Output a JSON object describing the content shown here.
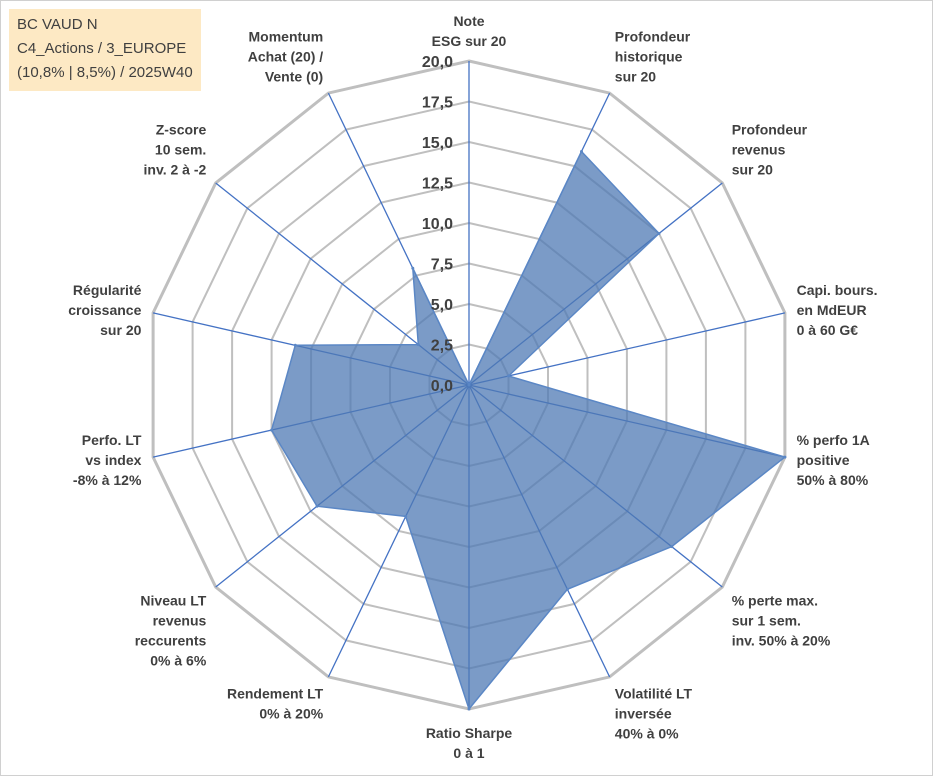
{
  "info": {
    "line1": "BC VAUD N",
    "line2": "C4_Actions / 3_EUROPE",
    "line3": "(10,8% | 8,5%) / 2025W40"
  },
  "colors": {
    "grid": "#bfbfbf",
    "spoke": "#4472c4",
    "fill": "#4f79b4",
    "stroke": "#5b87c5",
    "label": "#404040"
  },
  "chart_data": {
    "type": "radar",
    "title": "",
    "rmin": 0,
    "rmax": 20,
    "ticks": [
      "0,0",
      "2,5",
      "5,0",
      "7,5",
      "10,0",
      "12,5",
      "15,0",
      "17,5",
      "20,0"
    ],
    "tick_values": [
      0,
      2.5,
      5,
      7.5,
      10,
      12.5,
      15,
      17.5,
      20
    ],
    "axes": [
      {
        "label": [
          "Note",
          "ESG sur 20"
        ]
      },
      {
        "label": [
          "Profondeur",
          "historique",
          "sur 20"
        ]
      },
      {
        "label": [
          "Profondeur",
          "revenus",
          "sur 20"
        ]
      },
      {
        "label": [
          "Capi. bours.",
          "en MdEUR",
          "0 à 60 G€"
        ]
      },
      {
        "label": [
          "% perfo 1A",
          "positive",
          "50% à 80%"
        ]
      },
      {
        "label": [
          "% perte max.",
          "sur 1 sem.",
          "inv. 50% à 20%"
        ]
      },
      {
        "label": [
          "Volatilité LT",
          "inversée",
          "40% à 0%"
        ]
      },
      {
        "label": [
          "Ratio Sharpe",
          "0 à 1"
        ]
      },
      {
        "label": [
          "Rendement LT",
          "0% à 20%"
        ]
      },
      {
        "label": [
          "Niveau LT",
          "revenus",
          "reccurents",
          "0% à 6%"
        ]
      },
      {
        "label": [
          "Perfo. LT",
          "vs index",
          "-8% à 12%"
        ]
      },
      {
        "label": [
          "Régularité",
          "croissance",
          "sur 20"
        ]
      },
      {
        "label": [
          "Z-score",
          "10 sem.",
          "inv. 2 à -2"
        ]
      },
      {
        "label": [
          "Momentum",
          "Achat (20) /",
          "Vente (0)"
        ]
      }
    ],
    "series": [
      {
        "name": "BC VAUD N",
        "values": [
          0,
          16,
          15,
          2.5,
          20,
          16,
          14,
          20,
          9,
          12,
          12.5,
          11,
          4,
          8
        ]
      }
    ]
  }
}
